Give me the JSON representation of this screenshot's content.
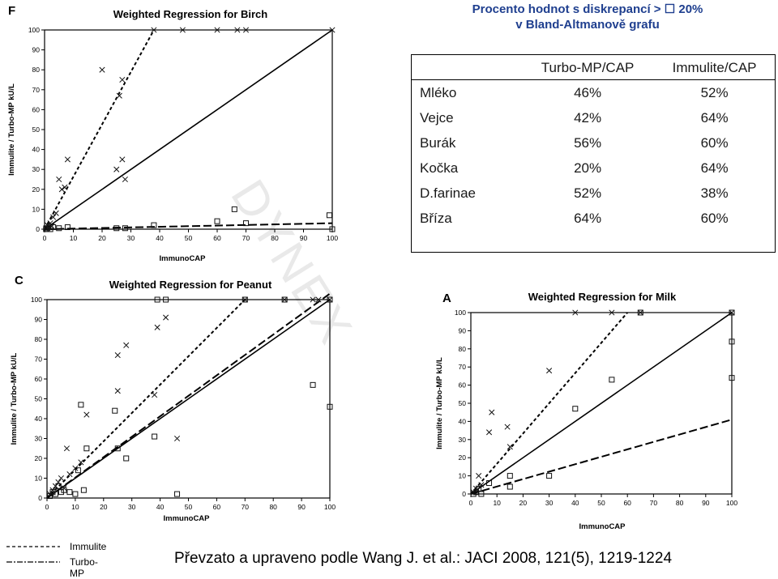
{
  "heading": {
    "line1": "Procento hodnot s diskrepancí > ☐ 20%",
    "line2": "v Bland-Altmanově grafu"
  },
  "table": {
    "columns": [
      "",
      "Turbo-MP/CAP",
      "Immulite/CAP"
    ],
    "rows": [
      {
        "name": "Mléko",
        "turbo": "46%",
        "immulite": "52%"
      },
      {
        "name": "Vejce",
        "turbo": "42%",
        "immulite": "64%"
      },
      {
        "name": "Burák",
        "turbo": "56%",
        "immulite": "60%"
      },
      {
        "name": "Kočka",
        "turbo": "20%",
        "immulite": "64%"
      },
      {
        "name": "D.farinae",
        "turbo": "52%",
        "immulite": "38%"
      },
      {
        "name": "Bříza",
        "turbo": "64%",
        "immulite": "60%"
      }
    ]
  },
  "legend": [
    {
      "label": "Immulite",
      "style": "dotted"
    },
    {
      "label": "Turbo-MP",
      "style": "dashed"
    }
  ],
  "citation": "Převzato a upraveno podle Wang J. et al.: JACI 2008, 121(5), 1219-1224",
  "watermark": "DYNEX",
  "chart_data": [
    {
      "type": "scatter",
      "letter": "F",
      "title": "Weighted Regression for Birch",
      "xlabel": "ImmunoCAP",
      "ylabel": "Immulite / Turbo-MP kU/L",
      "xlim": [
        0,
        100
      ],
      "ylim": [
        0,
        100
      ],
      "xticks": [
        0,
        10,
        20,
        30,
        40,
        50,
        60,
        70,
        80,
        90,
        100
      ],
      "yticks": [
        0,
        10,
        20,
        30,
        40,
        50,
        60,
        70,
        80,
        90,
        100
      ],
      "series": [
        {
          "marker": "x",
          "points": [
            [
              0.5,
              0.5
            ],
            [
              1,
              2
            ],
            [
              1.5,
              1
            ],
            [
              2,
              3
            ],
            [
              2.5,
              1.5
            ],
            [
              3,
              6
            ],
            [
              4,
              8
            ],
            [
              5,
              25
            ],
            [
              6,
              20
            ],
            [
              7,
              21
            ],
            [
              8,
              35
            ],
            [
              20,
              80
            ],
            [
              25,
              30
            ],
            [
              26,
              67
            ],
            [
              27,
              35
            ],
            [
              27,
              75
            ],
            [
              28,
              25
            ],
            [
              38,
              100
            ],
            [
              48,
              100
            ],
            [
              60,
              100
            ],
            [
              67,
              100
            ],
            [
              70,
              100
            ],
            [
              100,
              100
            ]
          ]
        },
        {
          "marker": "square",
          "points": [
            [
              0.5,
              0
            ],
            [
              1,
              0.5
            ],
            [
              2,
              0
            ],
            [
              3,
              1
            ],
            [
              5,
              0.5
            ],
            [
              8,
              1
            ],
            [
              25,
              0.5
            ],
            [
              28,
              0.5
            ],
            [
              38,
              2
            ],
            [
              60,
              4
            ],
            [
              66,
              10
            ],
            [
              70,
              3
            ],
            [
              99,
              7
            ],
            [
              100,
              0
            ]
          ]
        }
      ],
      "lines": [
        {
          "style": "solid",
          "x": [
            0,
            100
          ],
          "y": [
            0,
            100
          ]
        },
        {
          "style": "dotted",
          "x": [
            0,
            38
          ],
          "y": [
            0,
            100
          ]
        },
        {
          "style": "dashed",
          "x": [
            0,
            100
          ],
          "y": [
            0,
            3
          ]
        }
      ]
    },
    {
      "type": "scatter",
      "letter": "C",
      "title": "Weighted Regression for Peanut",
      "xlabel": "ImmunoCAP",
      "ylabel": "Immulite / Turbo-MP kU/L",
      "xlim": [
        0,
        100
      ],
      "ylim": [
        0,
        100
      ],
      "xticks": [
        0,
        10,
        20,
        30,
        40,
        50,
        60,
        70,
        80,
        90,
        100
      ],
      "yticks": [
        0,
        10,
        20,
        30,
        40,
        50,
        60,
        70,
        80,
        90,
        100
      ],
      "series": [
        {
          "marker": "x",
          "points": [
            [
              1,
              2
            ],
            [
              2,
              4
            ],
            [
              3,
              6
            ],
            [
              4,
              8
            ],
            [
              5,
              10
            ],
            [
              6,
              5
            ],
            [
              7,
              25
            ],
            [
              8,
              12
            ],
            [
              10,
              15
            ],
            [
              12,
              18
            ],
            [
              14,
              42
            ],
            [
              25,
              54
            ],
            [
              25,
              72
            ],
            [
              28,
              77
            ],
            [
              38,
              52
            ],
            [
              39,
              86
            ],
            [
              42,
              91
            ],
            [
              46,
              30
            ],
            [
              70,
              100
            ],
            [
              84,
              100
            ],
            [
              94,
              100
            ],
            [
              96,
              100
            ],
            [
              100,
              100
            ]
          ]
        },
        {
          "marker": "square",
          "points": [
            [
              1,
              1
            ],
            [
              2,
              3
            ],
            [
              3,
              2
            ],
            [
              4,
              6
            ],
            [
              5,
              3
            ],
            [
              6,
              4
            ],
            [
              8,
              3
            ],
            [
              10,
              2
            ],
            [
              11,
              14
            ],
            [
              12,
              47
            ],
            [
              13,
              4
            ],
            [
              14,
              25
            ],
            [
              24,
              44
            ],
            [
              25,
              25
            ],
            [
              28,
              20
            ],
            [
              38,
              31
            ],
            [
              39,
              100
            ],
            [
              42,
              100
            ],
            [
              46,
              2
            ],
            [
              70,
              100
            ],
            [
              84,
              100
            ],
            [
              94,
              57
            ],
            [
              100,
              100
            ],
            [
              100,
              46
            ]
          ]
        }
      ],
      "lines": [
        {
          "style": "solid",
          "x": [
            0,
            100
          ],
          "y": [
            0,
            100
          ]
        },
        {
          "style": "dotted",
          "x": [
            0,
            70
          ],
          "y": [
            0,
            100
          ]
        },
        {
          "style": "dashed",
          "x": [
            0,
            100
          ],
          "y": [
            0,
            103
          ]
        }
      ]
    },
    {
      "type": "scatter",
      "letter": "A",
      "title": "Weighted Regression for Milk",
      "xlabel": "ImmunoCAP",
      "ylabel": "Immulite / Turbo-MP kU/L",
      "xlim": [
        0,
        100
      ],
      "ylim": [
        0,
        100
      ],
      "xticks": [
        0,
        10,
        20,
        30,
        40,
        50,
        60,
        70,
        80,
        90,
        100
      ],
      "yticks": [
        0,
        10,
        20,
        30,
        40,
        50,
        60,
        70,
        80,
        90,
        100
      ],
      "series": [
        {
          "marker": "x",
          "points": [
            [
              1,
              1
            ],
            [
              2,
              3
            ],
            [
              3,
              10
            ],
            [
              4,
              5
            ],
            [
              7,
              34
            ],
            [
              8,
              45
            ],
            [
              14,
              37
            ],
            [
              15,
              26
            ],
            [
              30,
              68
            ],
            [
              40,
              100
            ],
            [
              54,
              100
            ],
            [
              65,
              100
            ],
            [
              100,
              100
            ]
          ]
        },
        {
          "marker": "square",
          "points": [
            [
              1,
              0
            ],
            [
              2,
              1
            ],
            [
              3,
              3
            ],
            [
              4,
              0
            ],
            [
              7,
              6
            ],
            [
              15,
              4
            ],
            [
              15,
              10
            ],
            [
              30,
              10
            ],
            [
              40,
              47
            ],
            [
              54,
              63
            ],
            [
              65,
              100
            ],
            [
              100,
              100
            ],
            [
              100,
              84
            ],
            [
              100,
              64
            ]
          ]
        }
      ],
      "lines": [
        {
          "style": "solid",
          "x": [
            0,
            100
          ],
          "y": [
            0,
            100
          ]
        },
        {
          "style": "dotted",
          "x": [
            0,
            60
          ],
          "y": [
            0,
            100
          ]
        },
        {
          "style": "dashed",
          "x": [
            0,
            100
          ],
          "y": [
            0,
            41
          ]
        }
      ]
    }
  ]
}
